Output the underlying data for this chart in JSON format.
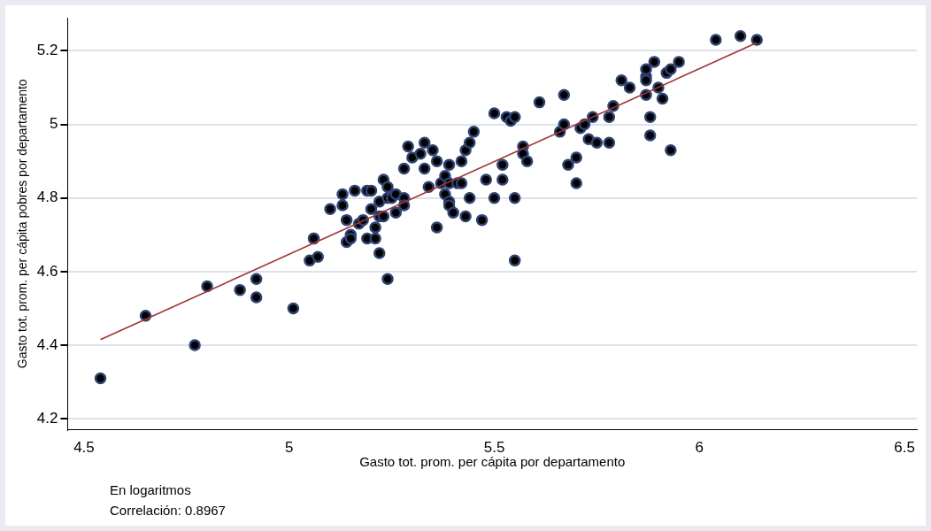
{
  "chart_data": {
    "type": "scatter",
    "xlabel": "Gasto tot. prom. per cápita por departamento",
    "ylabel": "Gasto tot. prom. per cápita pobres por departamento",
    "xlim": [
      4.46,
      6.53
    ],
    "ylim": [
      4.17,
      5.29
    ],
    "xticks": [
      4.5,
      5,
      5.5,
      6,
      6.5
    ],
    "yticks": [
      4.2,
      4.4,
      4.6,
      4.8,
      5,
      5.2
    ],
    "grid": "y",
    "marker": "circle",
    "annotations": [
      "En logaritmos",
      "Correlación: 0.8967"
    ],
    "series": [
      {
        "color": "#000000",
        "x": [
          4.54,
          4.65,
          4.77,
          4.8,
          4.88,
          4.92,
          4.92,
          5.01,
          5.05,
          5.06,
          5.06,
          5.07,
          5.1,
          5.13,
          5.13,
          5.14,
          5.14,
          5.15,
          5.15,
          5.16,
          5.17,
          5.18,
          5.19,
          5.19,
          5.2,
          5.2,
          5.21,
          5.21,
          5.22,
          5.22,
          5.22,
          5.23,
          5.23,
          5.24,
          5.24,
          5.24,
          5.25,
          5.26,
          5.26,
          5.28,
          5.28,
          5.28,
          5.29,
          5.3,
          5.32,
          5.33,
          5.33,
          5.34,
          5.35,
          5.36,
          5.36,
          5.37,
          5.38,
          5.38,
          5.39,
          5.39,
          5.39,
          5.39,
          5.4,
          5.41,
          5.42,
          5.42,
          5.43,
          5.44,
          5.43,
          5.44,
          5.45,
          5.47,
          5.48,
          5.5,
          5.5,
          5.52,
          5.52,
          5.53,
          5.54,
          5.55,
          5.55,
          5.55,
          5.57,
          5.57,
          5.58,
          5.61,
          5.66,
          5.67,
          5.67,
          5.68,
          5.7,
          5.7,
          5.71,
          5.72,
          5.73,
          5.74,
          5.75,
          5.78,
          5.78,
          5.79,
          5.81,
          5.83,
          5.87,
          5.87,
          5.87,
          5.87,
          5.88,
          5.88,
          5.89,
          5.9,
          5.91,
          5.92,
          5.93,
          5.93,
          5.95,
          6.04,
          6.1,
          6.14
        ],
        "values": [
          4.31,
          4.48,
          4.4,
          4.56,
          4.55,
          4.58,
          4.53,
          4.5,
          4.63,
          4.69,
          4.69,
          4.64,
          4.77,
          4.81,
          4.78,
          4.74,
          4.68,
          4.7,
          4.69,
          4.82,
          4.73,
          4.74,
          4.69,
          4.82,
          4.82,
          4.77,
          4.69,
          4.72,
          4.79,
          4.75,
          4.65,
          4.85,
          4.75,
          4.83,
          4.8,
          4.58,
          4.8,
          4.76,
          4.81,
          4.8,
          4.88,
          4.78,
          4.94,
          4.91,
          4.92,
          4.95,
          4.88,
          4.83,
          4.93,
          4.72,
          4.9,
          4.84,
          4.86,
          4.81,
          4.79,
          4.89,
          4.84,
          4.78,
          4.76,
          4.84,
          4.9,
          4.84,
          4.93,
          4.8,
          4.75,
          4.95,
          4.98,
          4.74,
          4.85,
          4.8,
          5.03,
          4.89,
          4.85,
          5.02,
          5.01,
          4.8,
          4.63,
          5.02,
          4.94,
          4.92,
          4.9,
          5.06,
          4.98,
          5,
          5.08,
          4.89,
          4.91,
          4.84,
          4.99,
          5,
          4.96,
          5.02,
          4.95,
          4.95,
          5.02,
          5.05,
          5.12,
          5.1,
          5.13,
          5.08,
          5.15,
          5.12,
          5.02,
          4.97,
          5.17,
          5.1,
          5.07,
          5.14,
          5.15,
          4.93,
          5.17,
          5.23,
          5.24,
          5.23
        ]
      },
      {
        "type": "line",
        "color": "#a03434",
        "marker": "none",
        "x": [
          4.54,
          6.14
        ],
        "values": [
          4.415,
          5.222
        ]
      }
    ]
  }
}
